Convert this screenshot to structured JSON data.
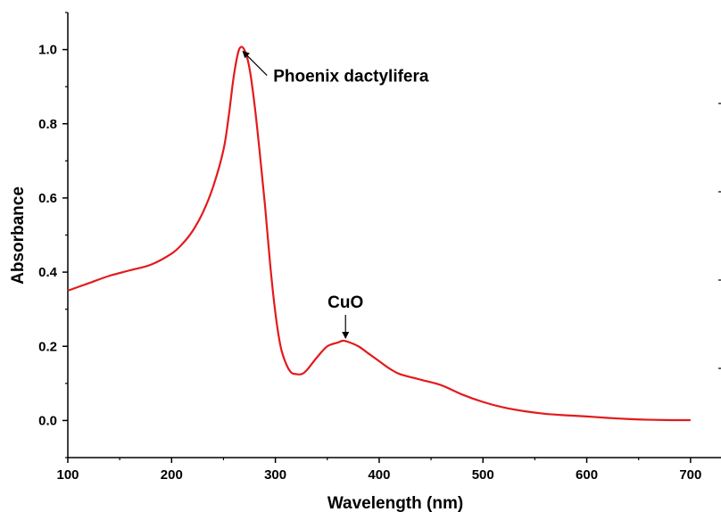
{
  "chart_data": {
    "type": "line",
    "xlabel": "Wavelength (nm)",
    "ylabel": "Absorbance",
    "xlim": [
      100,
      750
    ],
    "ylim": [
      -0.1,
      1.1
    ],
    "x_ticks": [
      "100",
      "200",
      "300",
      "400",
      "500",
      "600",
      "700"
    ],
    "y_ticks": [
      "0.0",
      "0.2",
      "0.4",
      "0.6",
      "0.8",
      "1.0"
    ],
    "grid": false,
    "series": [
      {
        "color": "#e31a1c",
        "x": [
          100,
          120,
          140,
          160,
          180,
          200,
          210,
          220,
          230,
          240,
          250,
          255,
          260,
          265,
          270,
          275,
          280,
          285,
          290,
          295,
          300,
          305,
          310,
          315,
          320,
          325,
          330,
          340,
          350,
          360,
          365,
          370,
          380,
          390,
          400,
          410,
          420,
          440,
          460,
          480,
          500,
          520,
          540,
          560,
          580,
          600,
          620,
          640,
          660,
          680,
          700
        ],
        "y": [
          0.35,
          0.37,
          0.39,
          0.405,
          0.42,
          0.45,
          0.475,
          0.51,
          0.56,
          0.63,
          0.73,
          0.82,
          0.93,
          1.0,
          1.0,
          0.95,
          0.85,
          0.72,
          0.58,
          0.42,
          0.29,
          0.2,
          0.155,
          0.13,
          0.125,
          0.125,
          0.135,
          0.17,
          0.2,
          0.21,
          0.215,
          0.212,
          0.2,
          0.18,
          0.16,
          0.14,
          0.125,
          0.11,
          0.095,
          0.07,
          0.05,
          0.035,
          0.025,
          0.018,
          0.014,
          0.011,
          0.007,
          0.004,
          0.002,
          0.001,
          0.001
        ]
      }
    ],
    "annotations": [
      {
        "text": "Phoenix dactylifera",
        "x": 267,
        "y": 1.0
      },
      {
        "text": "CuO",
        "x": 365,
        "y": 0.215
      }
    ]
  }
}
